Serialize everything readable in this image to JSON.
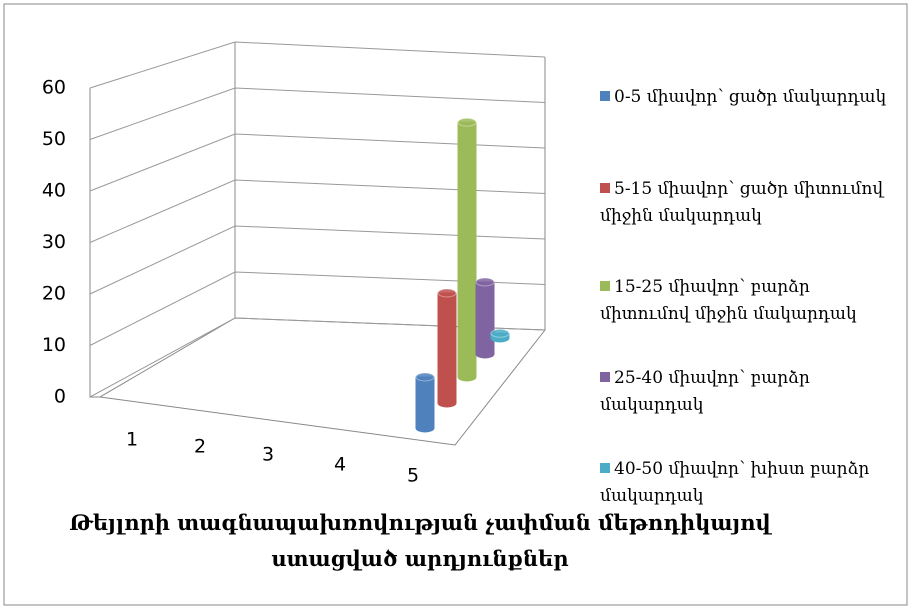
{
  "chart_data": {
    "type": "bar",
    "title": "Թեյլորի տագնապախռովության չափման մեթոդիկայով ստացված արդյունքներ",
    "categories": [
      "1",
      "2",
      "3",
      "4",
      "5"
    ],
    "series": [
      {
        "name": "0-5 միավոր՝ ցածր մակարդակ",
        "color": "#4f81bd",
        "values": [
          null,
          null,
          null,
          null,
          10
        ]
      },
      {
        "name": "5-15 միավոր՝ ցածր միտումով միջին մակարդակ",
        "color": "#c0504d",
        "values": [
          null,
          null,
          null,
          null,
          22
        ]
      },
      {
        "name": "15-25 միավոր՝ բարձր միտումով միջին մակարդակ",
        "color": "#9bbb59",
        "values": [
          null,
          null,
          null,
          null,
          52
        ]
      },
      {
        "name": "25-40 միավոր՝ բարձր մակարդակ",
        "color": "#8064a2",
        "values": [
          null,
          null,
          null,
          null,
          15
        ]
      },
      {
        "name": "40-50 միավոր՝ խիստ բարձր մակարդակ",
        "color": "#4bacc6",
        "values": [
          null,
          null,
          null,
          null,
          1
        ]
      }
    ],
    "ylim": [
      0,
      60
    ],
    "yticks": [
      0,
      10,
      20,
      30,
      40,
      50,
      60
    ],
    "grid": true
  }
}
